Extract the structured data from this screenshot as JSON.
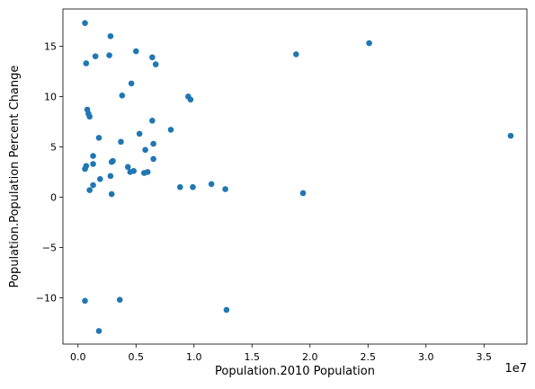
{
  "chart_data": {
    "type": "scatter",
    "title": "",
    "xlabel": "Population.2010 Population",
    "ylabel": "Population.Population Percent Change",
    "x_offset_label": "1e7",
    "x_scale": 10000000,
    "xlim": [
      -1300000,
      38700000
    ],
    "ylim": [
      -14.6,
      18.7
    ],
    "x_ticks": [
      0,
      5000000,
      10000000,
      15000000,
      20000000,
      25000000,
      30000000,
      35000000
    ],
    "x_tick_labels": [
      "0.0",
      "0.5",
      "1.0",
      "1.5",
      "2.0",
      "2.5",
      "3.0",
      "3.5"
    ],
    "y_ticks": [
      -10,
      -5,
      0,
      5,
      10,
      15
    ],
    "y_tick_labels": [
      "−10",
      "−5",
      "0",
      "5",
      "10",
      "15"
    ],
    "grid": false,
    "legend": "none",
    "marker_color": "#1f77b4",
    "points": [
      {
        "x": 37300000,
        "y": 6.1
      },
      {
        "x": 25100000,
        "y": 15.3
      },
      {
        "x": 19400000,
        "y": 0.4
      },
      {
        "x": 18800000,
        "y": 14.2
      },
      {
        "x": 12800000,
        "y": -11.2
      },
      {
        "x": 12700000,
        "y": 0.8
      },
      {
        "x": 11500000,
        "y": 1.3
      },
      {
        "x": 9900000,
        "y": 1.0
      },
      {
        "x": 9700000,
        "y": 9.7
      },
      {
        "x": 9500000,
        "y": 10.0
      },
      {
        "x": 8800000,
        "y": 1.0
      },
      {
        "x": 8000000,
        "y": 6.7
      },
      {
        "x": 6700000,
        "y": 13.2
      },
      {
        "x": 6500000,
        "y": 5.3
      },
      {
        "x": 6500000,
        "y": 3.8
      },
      {
        "x": 6400000,
        "y": 7.6
      },
      {
        "x": 6400000,
        "y": 13.9
      },
      {
        "x": 6000000,
        "y": 2.5
      },
      {
        "x": 5800000,
        "y": 4.7
      },
      {
        "x": 5700000,
        "y": 2.4
      },
      {
        "x": 5300000,
        "y": 6.3
      },
      {
        "x": 5000000,
        "y": 14.5
      },
      {
        "x": 4800000,
        "y": 2.6
      },
      {
        "x": 4600000,
        "y": 11.3
      },
      {
        "x": 4500000,
        "y": 2.5
      },
      {
        "x": 4300000,
        "y": 3.0
      },
      {
        "x": 3800000,
        "y": 10.1
      },
      {
        "x": 3700000,
        "y": 5.5
      },
      {
        "x": 3600000,
        "y": -10.2
      },
      {
        "x": 3000000,
        "y": 3.6
      },
      {
        "x": 2900000,
        "y": 3.5
      },
      {
        "x": 2900000,
        "y": 0.3
      },
      {
        "x": 2800000,
        "y": 2.1
      },
      {
        "x": 2800000,
        "y": 16.0
      },
      {
        "x": 2700000,
        "y": 14.1
      },
      {
        "x": 1900000,
        "y": 1.8
      },
      {
        "x": 1800000,
        "y": -13.3
      },
      {
        "x": 1800000,
        "y": 5.9
      },
      {
        "x": 1500000,
        "y": 14.0
      },
      {
        "x": 1300000,
        "y": 4.1
      },
      {
        "x": 1300000,
        "y": 3.3
      },
      {
        "x": 1300000,
        "y": 1.2
      },
      {
        "x": 1000000,
        "y": 0.7
      },
      {
        "x": 1000000,
        "y": 8.0
      },
      {
        "x": 900000,
        "y": 8.3
      },
      {
        "x": 800000,
        "y": 8.7
      },
      {
        "x": 700000,
        "y": 3.1
      },
      {
        "x": 700000,
        "y": 13.3
      },
      {
        "x": 600000,
        "y": 17.3
      },
      {
        "x": 600000,
        "y": 2.8
      },
      {
        "x": 600000,
        "y": -10.3
      }
    ]
  }
}
